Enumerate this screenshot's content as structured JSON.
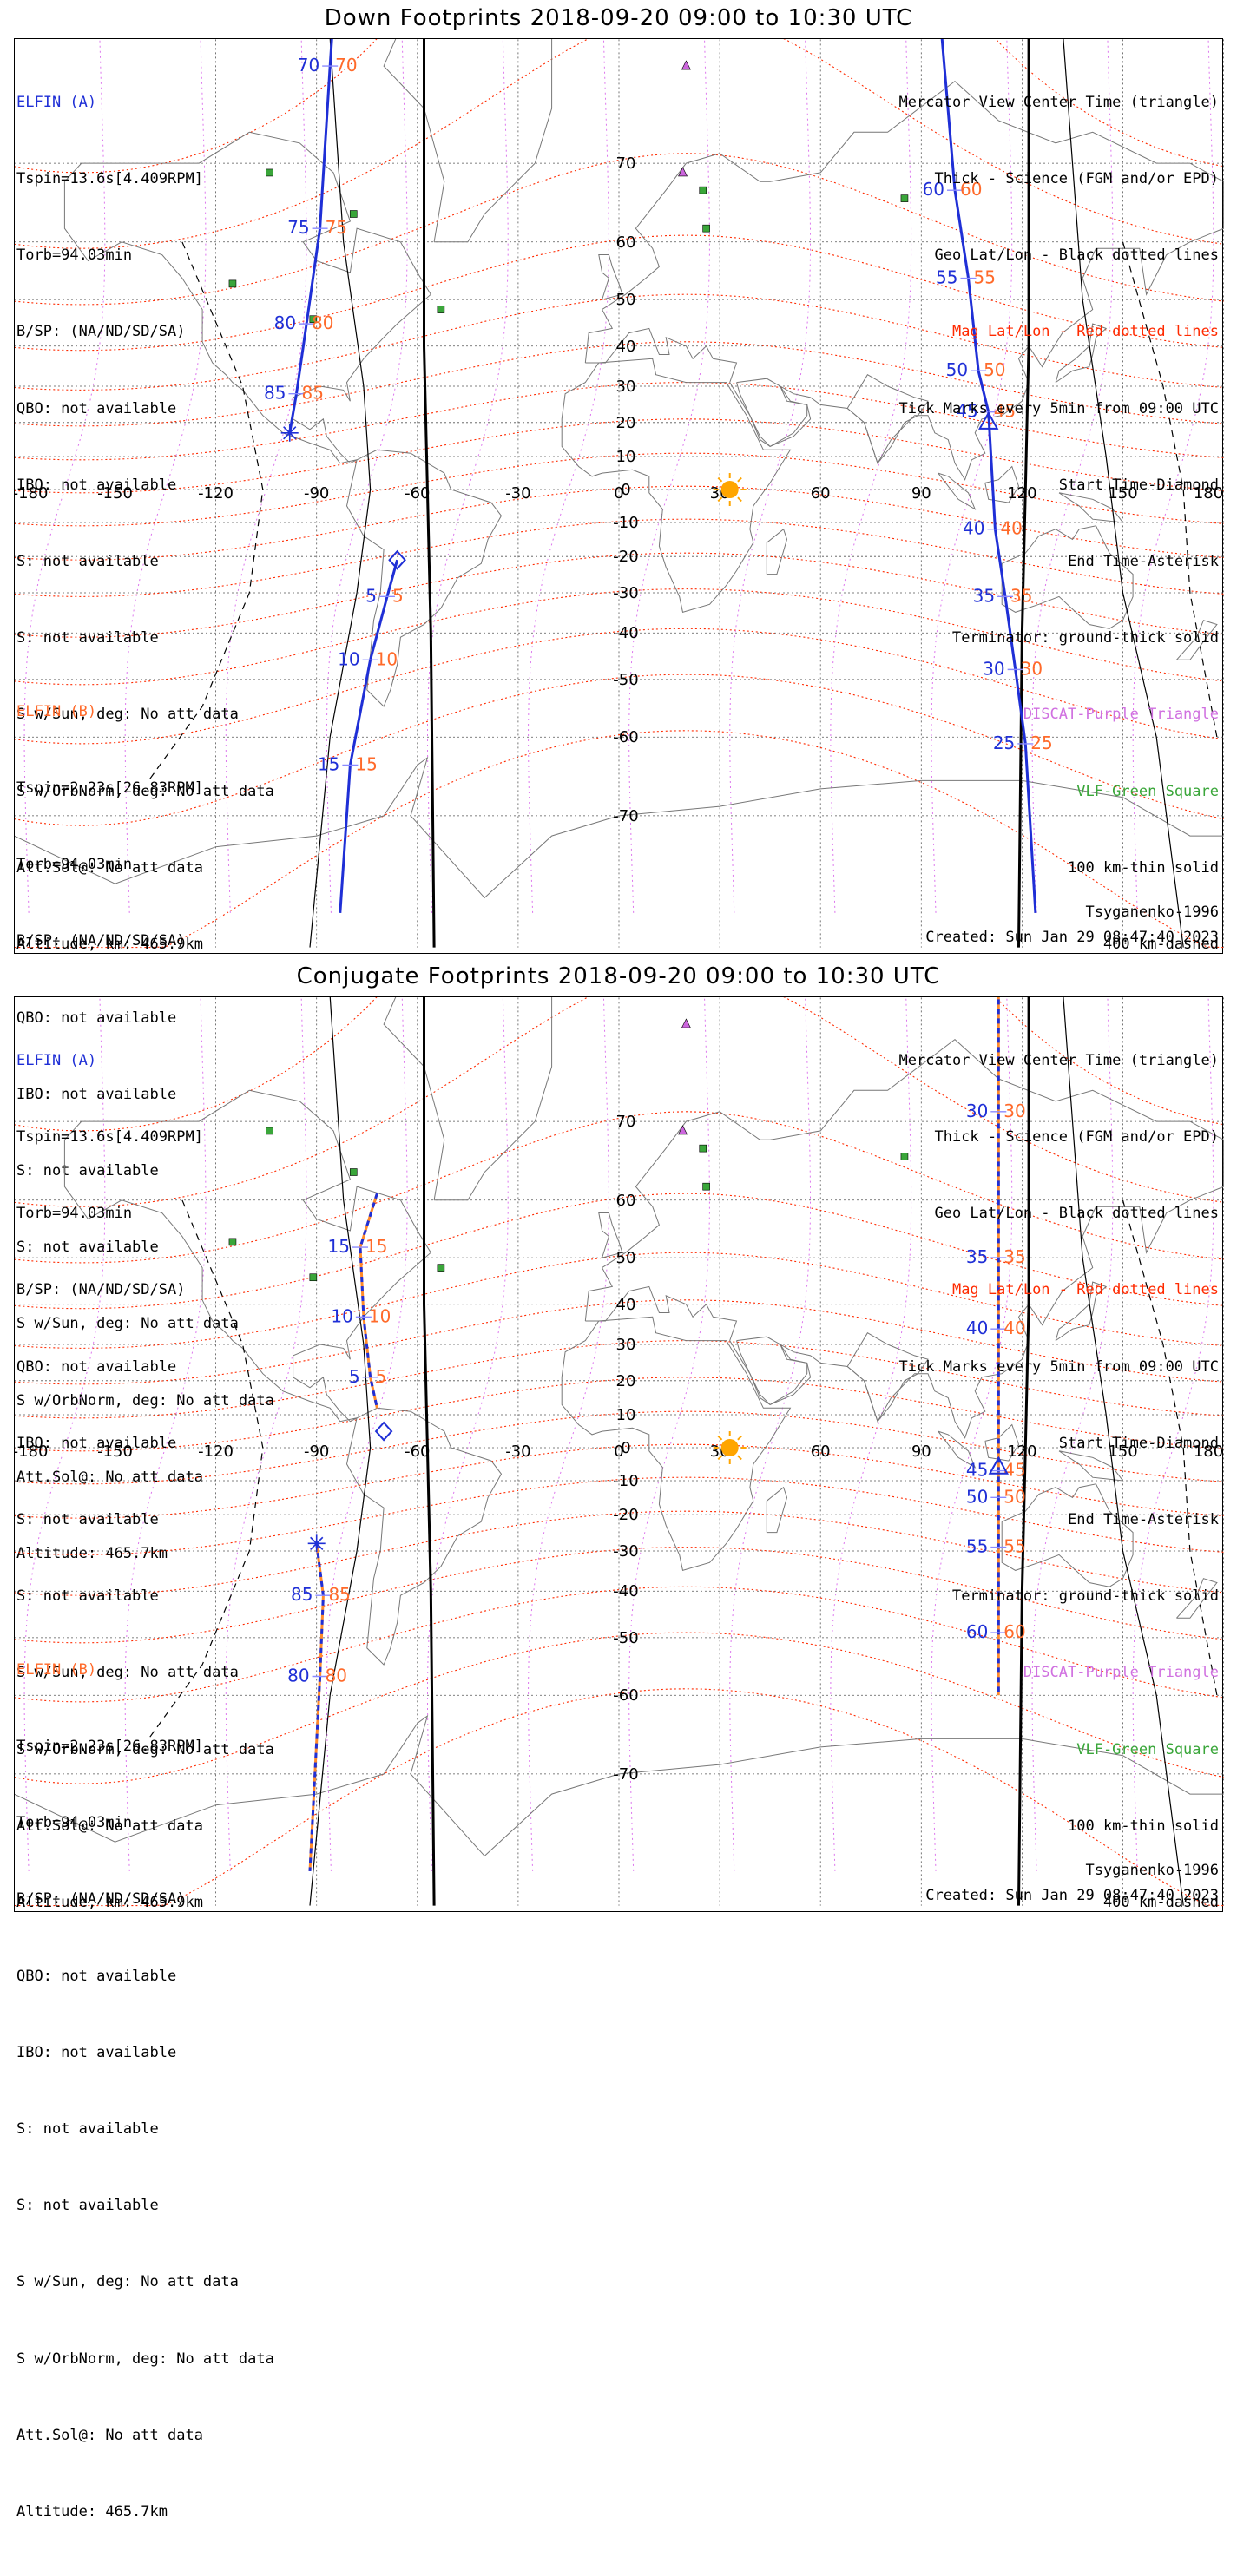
{
  "panels": [
    {
      "title": "Down Footprints 2018-09-20 09:00 to 10:30 UTC",
      "kind": "down",
      "satA": {
        "name": "ELFIN (A)",
        "lines": [
          "Tspin=13.6s[4.409RPM]",
          "Torb=94.03min",
          "B/SP: (NA/ND/SD/SA)",
          "QBO: not available",
          "IBO: not available",
          "S: not available",
          "S: not available",
          "S w/Sun, deg: No att data",
          "S w/OrbNorm, deg: No att data",
          "Att.Sol@: No att data",
          "Altitude, km: 465.9km"
        ]
      },
      "satB": {
        "name": "ELFIN (B)",
        "lines": [
          "Tspin=2.23s[26.83RPM]",
          "Torb=94.03min",
          "B/SP: (NA/ND/SD/SA)",
          "QBO: not available",
          "IBO: not available",
          "S: not available",
          "S: not available",
          "S w/Sun, deg: No att data",
          "S w/OrbNorm, deg: No att data",
          "Att.Sol@: No att data",
          "Altitude: 465.7km"
        ]
      },
      "legend": [
        "Mercator View Center Time (triangle)",
        "Thick - Science (FGM and/or EPD)",
        "Geo Lat/Lon - Black dotted lines",
        "Mag Lat/Lon - Red dotted lines",
        "Tick Marks every 5min from 09:00 UTC",
        "Start Time-Diamond",
        "End Time-Asterisk",
        "Terminator: ground-thick solid",
        "DISCAT-Purple Triangle",
        "VLF-Green Square",
        "100 km-thin solid",
        "400 km-dashed"
      ],
      "model": "Tsyganenko-1996",
      "created": "Created: Sun Jan 29 08:47:40 2023",
      "ticksA": [
        {
          "lon": -86,
          "lat": 78,
          "l": "70",
          "r": "70"
        },
        {
          "lon": -89,
          "lat": 62,
          "l": "75",
          "r": "75"
        },
        {
          "lon": -93,
          "lat": 45,
          "l": "80",
          "r": "80"
        },
        {
          "lon": -96,
          "lat": 28,
          "l": "85",
          "r": "85"
        }
      ],
      "ticksB": [
        {
          "lon": -69,
          "lat": -31,
          "l": "5",
          "r": "5"
        },
        {
          "lon": -74,
          "lat": -46,
          "l": "10",
          "r": "10"
        },
        {
          "lon": -80,
          "lat": -64,
          "l": "15",
          "r": "15"
        }
      ],
      "ticksRight": [
        {
          "lon": 100,
          "lat": 67,
          "l": "60",
          "r": "60"
        },
        {
          "lon": 104,
          "lat": 54,
          "l": "55",
          "r": "55"
        },
        {
          "lon": 107,
          "lat": 34,
          "l": "50",
          "r": "50"
        },
        {
          "lon": 110,
          "lat": 23,
          "l": "45",
          "r": "45"
        },
        {
          "lon": 112,
          "lat": -12,
          "l": "40",
          "r": "40"
        },
        {
          "lon": 115,
          "lat": -31,
          "l": "35",
          "r": "35"
        },
        {
          "lon": 118,
          "lat": -48,
          "l": "30",
          "r": "30"
        },
        {
          "lon": 121,
          "lat": -61,
          "l": "25",
          "r": "25"
        }
      ]
    },
    {
      "title": "Conjugate Footprints 2018-09-20 09:00 to 10:30 UTC",
      "kind": "conj",
      "satA": {
        "name": "ELFIN (A)",
        "lines": [
          "Tspin=13.6s[4.409RPM]",
          "Torb=94.03min",
          "B/SP: (NA/ND/SD/SA)",
          "QBO: not available",
          "IBO: not available",
          "S: not available",
          "S: not available",
          "S w/Sun, deg: No att data",
          "S w/OrbNorm, deg: No att data",
          "Att.Sol@: No att data",
          "Altitude, km: 465.9km"
        ]
      },
      "satB": {
        "name": "ELFIN (B)",
        "lines": [
          "Tspin=2.23s[26.83RPM]",
          "Torb=94.03min",
          "B/SP: (NA/ND/SD/SA)",
          "QBO: not available",
          "IBO: not available",
          "S: not available",
          "S: not available",
          "S w/Sun, deg: No att data",
          "S w/OrbNorm, deg: No att data",
          "Att.Sol@: No att data",
          "Altitude: 465.7km"
        ]
      },
      "legend": [
        "Mercator View Center Time (triangle)",
        "Thick - Science (FGM and/or EPD)",
        "Geo Lat/Lon - Black dotted lines",
        "Mag Lat/Lon - Red dotted lines",
        "Tick Marks every 5min from 09:00 UTC",
        "Start Time-Diamond",
        "End Time-Asterisk",
        "Terminator: ground-thick solid",
        "DISCAT-Purple Triangle",
        "VLF-Green Square",
        "100 km-thin solid",
        "400 km-dashed"
      ],
      "model": "Tsyganenko-1996",
      "created": "Created: Sun Jan 29 08:47:40 2023",
      "ticksA": [
        {
          "lon": -77,
          "lat": 52,
          "l": "15",
          "r": "15"
        },
        {
          "lon": -76,
          "lat": 37,
          "l": "10",
          "r": "10"
        },
        {
          "lon": -74,
          "lat": 21,
          "l": "5",
          "r": "5"
        }
      ],
      "ticksB": [
        {
          "lon": -88,
          "lat": -41,
          "l": "85",
          "r": "85"
        },
        {
          "lon": -89,
          "lat": -57,
          "l": "80",
          "r": "80"
        }
      ],
      "ticksRight": [
        {
          "lon": 113,
          "lat": 71,
          "l": "30",
          "r": "30"
        },
        {
          "lon": 113,
          "lat": 50,
          "l": "35",
          "r": "35"
        },
        {
          "lon": 113,
          "lat": 34,
          "l": "40",
          "r": "40"
        },
        {
          "lon": 113,
          "lat": -7,
          "l": "45",
          "r": "45"
        },
        {
          "lon": 113,
          "lat": -15,
          "l": "50",
          "r": "50"
        },
        {
          "lon": 113,
          "lat": -29,
          "l": "55",
          "r": "55"
        },
        {
          "lon": 113,
          "lat": -49,
          "l": "60",
          "r": "60"
        }
      ]
    }
  ],
  "lon_labels": [
    "-180",
    "-150",
    "-120",
    "-90",
    "-60",
    "-30",
    "0",
    "30",
    "60",
    "90",
    "120",
    "150",
    "180"
  ],
  "lat_labels": [
    "70",
    "60",
    "50",
    "40",
    "30",
    "20",
    "10",
    "0",
    "-10",
    "-20",
    "-30",
    "-40",
    "-50",
    "-60",
    "-70"
  ],
  "colors": {
    "track": "#1f2fd6",
    "mag": "#ff2a00",
    "tickLabel": "#ff6a2a",
    "discat": "#cc66dd",
    "vlf": "#3aa63a",
    "sun": "#ffa500"
  }
}
